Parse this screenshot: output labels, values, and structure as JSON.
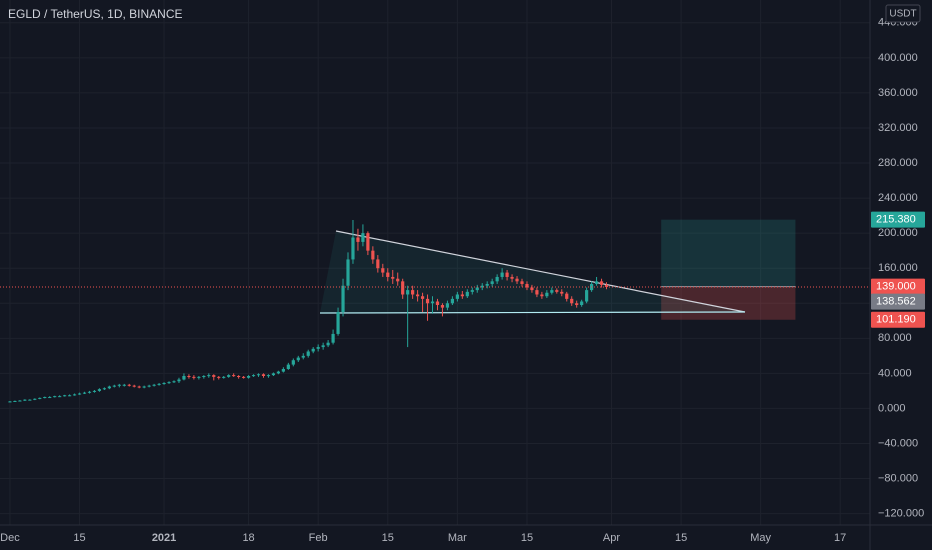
{
  "chart_data": {
    "type": "candlestick",
    "title": "EGLD / TetherUS, 1D, BINANCE",
    "currency": "USDT",
    "x": [
      "2020-12-01",
      "2020-12-02",
      "2020-12-03",
      "2020-12-04",
      "2020-12-05",
      "2020-12-06",
      "2020-12-07",
      "2020-12-08",
      "2020-12-09",
      "2020-12-10",
      "2020-12-11",
      "2020-12-12",
      "2020-12-13",
      "2020-12-14",
      "2020-12-15",
      "2020-12-16",
      "2020-12-17",
      "2020-12-18",
      "2020-12-19",
      "2020-12-20",
      "2020-12-21",
      "2020-12-22",
      "2020-12-23",
      "2020-12-24",
      "2020-12-25",
      "2020-12-26",
      "2020-12-27",
      "2020-12-28",
      "2020-12-29",
      "2020-12-30",
      "2020-12-31",
      "2021-01-01",
      "2021-01-02",
      "2021-01-03",
      "2021-01-04",
      "2021-01-05",
      "2021-01-06",
      "2021-01-07",
      "2021-01-08",
      "2021-01-09",
      "2021-01-10",
      "2021-01-11",
      "2021-01-12",
      "2021-01-13",
      "2021-01-14",
      "2021-01-15",
      "2021-01-16",
      "2021-01-17",
      "2021-01-18",
      "2021-01-19",
      "2021-01-20",
      "2021-01-21",
      "2021-01-22",
      "2021-01-23",
      "2021-01-24",
      "2021-01-25",
      "2021-01-26",
      "2021-01-27",
      "2021-01-28",
      "2021-01-29",
      "2021-01-30",
      "2021-01-31",
      "2021-02-01",
      "2021-02-02",
      "2021-02-03",
      "2021-02-04",
      "2021-02-05",
      "2021-02-06",
      "2021-02-07",
      "2021-02-08",
      "2021-02-09",
      "2021-02-10",
      "2021-02-11",
      "2021-02-12",
      "2021-02-13",
      "2021-02-14",
      "2021-02-15",
      "2021-02-16",
      "2021-02-17",
      "2021-02-18",
      "2021-02-19",
      "2021-02-20",
      "2021-02-21",
      "2021-02-22",
      "2021-02-23",
      "2021-02-24",
      "2021-02-25",
      "2021-02-26",
      "2021-02-27",
      "2021-02-28",
      "2021-03-01",
      "2021-03-02",
      "2021-03-03",
      "2021-03-04",
      "2021-03-05",
      "2021-03-06",
      "2021-03-07",
      "2021-03-08",
      "2021-03-09",
      "2021-03-10",
      "2021-03-11",
      "2021-03-12",
      "2021-03-13",
      "2021-03-14",
      "2021-03-15",
      "2021-03-16",
      "2021-03-17",
      "2021-03-18",
      "2021-03-19",
      "2021-03-20",
      "2021-03-21",
      "2021-03-22",
      "2021-03-23",
      "2021-03-24",
      "2021-03-25",
      "2021-03-26",
      "2021-03-27",
      "2021-03-28",
      "2021-03-29",
      "2021-03-30",
      "2021-03-31"
    ],
    "open": [
      7.5,
      8,
      8.5,
      9,
      10,
      10,
      11,
      12,
      13,
      13,
      14,
      14,
      15,
      15,
      16,
      17,
      18,
      19,
      20,
      22,
      23,
      25,
      26,
      27,
      27,
      26,
      25,
      24,
      25,
      26,
      27,
      28,
      29,
      30,
      31,
      33,
      37,
      36,
      35,
      36,
      37,
      38,
      36,
      35,
      36,
      38,
      37,
      36,
      35,
      37,
      38,
      39,
      37,
      38,
      40,
      42,
      45,
      50,
      55,
      58,
      60,
      65,
      68,
      70,
      72,
      75,
      85,
      110,
      140,
      170,
      195,
      190,
      200,
      180,
      170,
      160,
      155,
      150,
      148,
      145,
      130,
      135,
      130,
      128,
      125,
      120,
      122,
      118,
      115,
      120,
      125,
      130,
      128,
      133,
      135,
      138,
      140,
      142,
      145,
      150,
      155,
      150,
      148,
      145,
      142,
      138,
      135,
      130,
      128,
      132,
      135,
      133,
      131,
      125,
      120,
      118,
      122,
      135,
      142,
      145,
      141
    ],
    "high": [
      8.5,
      9,
      9.5,
      10.5,
      10.5,
      11.5,
      12.5,
      13.5,
      14,
      14.5,
      15,
      15.5,
      16,
      17,
      18,
      19,
      20,
      21,
      23,
      24,
      26,
      27,
      28,
      28,
      28,
      27,
      26,
      26,
      27,
      28,
      29,
      30,
      31,
      32,
      35,
      40,
      39,
      38,
      37,
      38,
      40,
      39,
      37,
      37,
      39,
      40,
      38,
      37,
      38,
      39,
      40,
      40,
      39,
      41,
      43,
      47,
      52,
      57,
      60,
      63,
      67,
      70,
      73,
      75,
      78,
      90,
      115,
      148,
      178,
      215,
      205,
      210,
      202,
      185,
      175,
      165,
      160,
      158,
      155,
      148,
      140,
      140,
      135,
      132,
      130,
      128,
      125,
      120,
      123,
      128,
      133,
      134,
      136,
      138,
      141,
      143,
      145,
      148,
      153,
      160,
      158,
      153,
      151,
      148,
      145,
      141,
      138,
      133,
      135,
      138,
      137,
      136,
      133,
      128,
      123,
      124,
      138,
      145,
      150,
      148,
      144
    ],
    "low": [
      7,
      7.5,
      8,
      8.5,
      9.5,
      9.5,
      10.5,
      11.5,
      12,
      12.5,
      13,
      13.5,
      14,
      14.5,
      15.5,
      16.5,
      17,
      18,
      19,
      21,
      22,
      24,
      24,
      25,
      25,
      24,
      23,
      23,
      24,
      25,
      26,
      27,
      28,
      29,
      29,
      32,
      34,
      33,
      33,
      34,
      35,
      32,
      33,
      34,
      35,
      36,
      34,
      34,
      34,
      36,
      36,
      35,
      35,
      37,
      39,
      41,
      44,
      48,
      53,
      56,
      58,
      63,
      65,
      67,
      70,
      73,
      83,
      105,
      135,
      165,
      180,
      185,
      175,
      165,
      155,
      150,
      145,
      142,
      140,
      125,
      70,
      125,
      122,
      110,
      100,
      108,
      112,
      105,
      112,
      118,
      122,
      125,
      126,
      130,
      132,
      135,
      137,
      139,
      142,
      147,
      146,
      144,
      142,
      139,
      135,
      132,
      127,
      125,
      126,
      130,
      131,
      128,
      122,
      117,
      115,
      116,
      120,
      133,
      140,
      138,
      136
    ],
    "close": [
      8,
      8.5,
      9,
      10,
      10,
      11,
      12,
      13,
      13,
      14,
      14,
      15,
      15,
      16,
      17,
      18,
      19,
      20,
      22,
      23,
      25,
      26,
      27,
      27,
      26,
      25,
      24,
      25,
      26,
      27,
      28,
      29,
      30,
      31,
      33,
      37,
      36,
      35,
      36,
      37,
      38,
      36,
      35,
      36,
      38,
      37,
      36,
      35,
      37,
      38,
      39,
      37,
      38,
      40,
      42,
      45,
      50,
      55,
      58,
      60,
      65,
      68,
      70,
      72,
      75,
      85,
      110,
      140,
      170,
      195,
      190,
      200,
      180,
      170,
      160,
      155,
      150,
      148,
      145,
      130,
      135,
      130,
      128,
      125,
      120,
      122,
      118,
      115,
      120,
      125,
      130,
      128,
      133,
      135,
      138,
      140,
      142,
      145,
      150,
      155,
      150,
      148,
      145,
      142,
      138,
      135,
      130,
      128,
      132,
      135,
      133,
      131,
      125,
      120,
      118,
      122,
      135,
      142,
      145,
      141,
      138.562
    ],
    "up_color": "#26a69a",
    "down_color": "#ef5350",
    "xlim": [
      "2020-11-29",
      "2021-05-23"
    ],
    "xticks": [
      {
        "value": "2020-12-01",
        "label": "Dec"
      },
      {
        "value": "2020-12-15",
        "label": "15"
      },
      {
        "value": "2021-01-01",
        "label": "2021"
      },
      {
        "value": "2021-01-18",
        "label": "18"
      },
      {
        "value": "2021-02-01",
        "label": "Feb"
      },
      {
        "value": "2021-02-15",
        "label": "15"
      },
      {
        "value": "2021-03-01",
        "label": "Mar"
      },
      {
        "value": "2021-03-15",
        "label": "15"
      },
      {
        "value": "2021-04-01",
        "label": "Apr"
      },
      {
        "value": "2021-04-15",
        "label": "15"
      },
      {
        "value": "2021-05-01",
        "label": "May"
      },
      {
        "value": "2021-05-17",
        "label": "17"
      }
    ],
    "ylim": [
      -133,
      466
    ],
    "yticks": [
      {
        "value": 440,
        "label": "440.000"
      },
      {
        "value": 400,
        "label": "400.000"
      },
      {
        "value": 360,
        "label": "360.000"
      },
      {
        "value": 320,
        "label": "320.000"
      },
      {
        "value": 280,
        "label": "280.000"
      },
      {
        "value": 240,
        "label": "240.000"
      },
      {
        "value": 200,
        "label": "200.000"
      },
      {
        "value": 160,
        "label": "160.000"
      },
      {
        "value": 120,
        "label": "120.000"
      },
      {
        "value": 80,
        "label": "80.000"
      },
      {
        "value": 40,
        "label": "40.000"
      },
      {
        "value": 0,
        "label": "0.000"
      },
      {
        "value": -40,
        "label": "−40.000"
      },
      {
        "value": -80,
        "label": "−80.000"
      },
      {
        "value": -120,
        "label": "−120.000"
      }
    ],
    "grid": true,
    "position": {
      "start": "2021-04-11",
      "end": "2021-05-08",
      "entry": {
        "value": 139,
        "label": "139.000"
      },
      "target": {
        "value": 215.38,
        "label": "215.380"
      },
      "stop": {
        "value": 101.19,
        "label": "101.190"
      }
    }
  }
}
